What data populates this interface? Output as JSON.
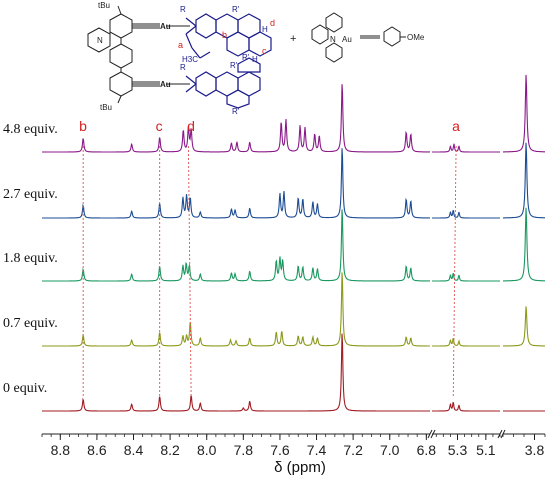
{
  "chart_data": {
    "type": "line",
    "xlabel": "δ (ppm)",
    "x_reversed": true,
    "x_axis_segments": [
      {
        "range": [
          8.9,
          6.78
        ],
        "ticks": [
          "8.8",
          "8.6",
          "8.4",
          "8.2",
          "8.0",
          "7.8",
          "7.6",
          "7.4",
          "7.2",
          "7.0",
          "6.8"
        ]
      },
      {
        "range": [
          5.48,
          5.0
        ],
        "ticks": [
          "5.3",
          "5.1"
        ]
      },
      {
        "range": [
          3.95,
          3.75
        ],
        "ticks": [
          "3.8"
        ]
      }
    ],
    "series": [
      {
        "name": "4.8 equiv.",
        "color": "#8a1a8a",
        "peaks": [
          [
            8.675,
            14
          ],
          [
            8.41,
            8
          ],
          [
            8.257,
            15
          ],
          [
            8.128,
            22
          ],
          [
            8.1,
            24
          ],
          [
            8.085,
            22
          ],
          [
            7.865,
            9
          ],
          [
            7.835,
            10
          ],
          [
            7.765,
            10
          ],
          [
            7.593,
            30
          ],
          [
            7.567,
            32
          ],
          [
            7.49,
            26
          ],
          [
            7.463,
            24
          ],
          [
            7.41,
            18
          ],
          [
            7.385,
            16
          ],
          [
            7.26,
            70
          ],
          [
            6.91,
            20
          ],
          [
            6.885,
            18
          ],
          [
            5.35,
            6
          ],
          [
            5.325,
            8
          ],
          [
            5.29,
            6
          ],
          [
            3.84,
            78
          ]
        ]
      },
      {
        "name": "2.7 equiv.",
        "color": "#1c4c94",
        "peaks": [
          [
            8.675,
            13
          ],
          [
            8.41,
            7
          ],
          [
            8.257,
            15
          ],
          [
            8.13,
            20
          ],
          [
            8.11,
            22
          ],
          [
            8.09,
            20
          ],
          [
            8.035,
            6
          ],
          [
            7.865,
            9
          ],
          [
            7.845,
            8
          ],
          [
            7.765,
            10
          ],
          [
            7.6,
            24
          ],
          [
            7.578,
            26
          ],
          [
            7.5,
            20
          ],
          [
            7.475,
            19
          ],
          [
            7.42,
            16
          ],
          [
            7.395,
            14
          ],
          [
            7.26,
            72
          ],
          [
            6.91,
            19
          ],
          [
            6.885,
            17
          ],
          [
            5.35,
            6
          ],
          [
            5.33,
            8
          ],
          [
            5.29,
            6
          ],
          [
            3.84,
            76
          ]
        ]
      },
      {
        "name": "1.8 equiv.",
        "color": "#1a9860",
        "peaks": [
          [
            8.675,
            12
          ],
          [
            8.41,
            7
          ],
          [
            8.257,
            15
          ],
          [
            8.13,
            15
          ],
          [
            8.112,
            17
          ],
          [
            8.095,
            15
          ],
          [
            8.035,
            7
          ],
          [
            7.865,
            8
          ],
          [
            7.845,
            7
          ],
          [
            7.765,
            10
          ],
          [
            7.62,
            20
          ],
          [
            7.6,
            22
          ],
          [
            7.585,
            20
          ],
          [
            7.5,
            15
          ],
          [
            7.475,
            14
          ],
          [
            7.42,
            13
          ],
          [
            7.395,
            12
          ],
          [
            7.26,
            74
          ],
          [
            6.91,
            15
          ],
          [
            6.885,
            13
          ],
          [
            5.35,
            6
          ],
          [
            5.33,
            8
          ],
          [
            5.29,
            6
          ],
          [
            3.84,
            74
          ]
        ]
      },
      {
        "name": "0.7 equiv.",
        "color": "#8c9a1a",
        "peaks": [
          [
            8.675,
            11
          ],
          [
            8.41,
            6
          ],
          [
            8.257,
            14
          ],
          [
            8.13,
            10
          ],
          [
            8.11,
            10
          ],
          [
            8.09,
            24
          ],
          [
            8.035,
            8
          ],
          [
            7.87,
            6
          ],
          [
            7.84,
            5
          ],
          [
            7.765,
            8
          ],
          [
            7.62,
            14
          ],
          [
            7.59,
            15
          ],
          [
            7.5,
            10
          ],
          [
            7.475,
            9
          ],
          [
            7.42,
            9
          ],
          [
            7.395,
            8
          ],
          [
            7.26,
            76
          ],
          [
            6.91,
            9
          ],
          [
            6.885,
            8
          ],
          [
            5.35,
            6
          ],
          [
            5.33,
            8
          ],
          [
            5.29,
            5
          ],
          [
            3.84,
            40
          ]
        ]
      },
      {
        "name": "0 equiv.",
        "color": "#a01c22",
        "peaks": [
          [
            8.675,
            12
          ],
          [
            8.41,
            7
          ],
          [
            8.257,
            15
          ],
          [
            8.085,
            16
          ],
          [
            8.035,
            8
          ],
          [
            7.8,
            3
          ],
          [
            7.765,
            10
          ],
          [
            7.26,
            80
          ],
          [
            5.35,
            7
          ],
          [
            5.33,
            9
          ],
          [
            5.29,
            6
          ]
        ]
      }
    ],
    "annotations": [
      {
        "label": "b",
        "color": "#d62020"
      },
      {
        "label": "c",
        "color": "#d62020"
      },
      {
        "label": "d",
        "color": "#d62020"
      },
      {
        "label": "a",
        "color": "#d62020"
      }
    ],
    "guide_lines": [
      {
        "label": "b",
        "ppm_top": 8.675,
        "ppm_bottom": 8.675,
        "color": "#e05050"
      },
      {
        "label": "c",
        "ppm_top": 8.257,
        "ppm_bottom": 8.257,
        "color": "#e05050"
      },
      {
        "label": "d",
        "ppm_top": 8.1,
        "ppm_bottom": 8.085,
        "color": "#e05050"
      },
      {
        "label": "a",
        "ppm_top": 5.31,
        "ppm_bottom": 5.33,
        "color": "#e05050"
      }
    ]
  },
  "structure": {
    "tbu_top": "tBu",
    "tbu_bottom": "tBu",
    "au_top": "Au",
    "au_bottom": "Au",
    "au_complex": "Au",
    "n_complex": "N",
    "n_label": "N",
    "r_label": "R",
    "r_prime": "R'",
    "plus": "+",
    "ome": "OMe",
    "h3c": "H3C",
    "h_label": "H",
    "letters": [
      "a",
      "b",
      "c",
      "d"
    ]
  }
}
